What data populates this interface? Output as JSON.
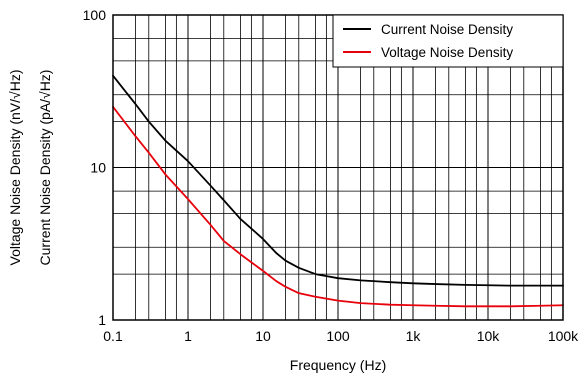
{
  "chart_data": {
    "type": "line",
    "title": "",
    "xlabel": "Frequency (Hz)",
    "ylabel_lines": [
      "Voltage Noise Density (nV/√Hz)",
      "Current Noise Density (pA/√Hz)"
    ],
    "x_scale": "log",
    "y_scale": "log",
    "xlim": [
      0.1,
      100000
    ],
    "ylim": [
      1,
      100
    ],
    "x_ticks": [
      {
        "value": 0.1,
        "label": "0.1"
      },
      {
        "value": 1,
        "label": "1"
      },
      {
        "value": 10,
        "label": "10"
      },
      {
        "value": 100,
        "label": "100"
      },
      {
        "value": 1000,
        "label": "1k"
      },
      {
        "value": 10000,
        "label": "10k"
      },
      {
        "value": 100000,
        "label": "100k"
      }
    ],
    "y_ticks": [
      {
        "value": 1,
        "label": "1"
      },
      {
        "value": 10,
        "label": "10"
      },
      {
        "value": 100,
        "label": "100"
      }
    ],
    "y_minor_gridlines": [
      2,
      3,
      5,
      7,
      20,
      30,
      50,
      70
    ],
    "x_minor_gridlines_per_decade": [
      2,
      3,
      5,
      7
    ],
    "grid": true,
    "legend_position": "top-right",
    "series": [
      {
        "name": "Current Noise Density",
        "color": "#000000",
        "x": [
          0.1,
          0.2,
          0.3,
          0.5,
          1,
          2,
          3,
          5,
          10,
          15,
          20,
          30,
          50,
          100,
          200,
          500,
          1000,
          2000,
          5000,
          10000,
          20000,
          50000,
          100000
        ],
        "y": [
          40,
          26,
          20,
          15,
          11,
          7.6,
          6.1,
          4.6,
          3.4,
          2.75,
          2.45,
          2.2,
          2.0,
          1.88,
          1.82,
          1.77,
          1.74,
          1.72,
          1.7,
          1.69,
          1.68,
          1.68,
          1.68
        ]
      },
      {
        "name": "Voltage Noise Density",
        "color": "#e8000b",
        "x": [
          0.1,
          0.2,
          0.3,
          0.5,
          1,
          2,
          3,
          5,
          10,
          15,
          20,
          30,
          50,
          100,
          200,
          500,
          1000,
          2000,
          5000,
          10000,
          20000,
          50000,
          100000
        ],
        "y": [
          25,
          16,
          12.5,
          9,
          6.2,
          4.2,
          3.3,
          2.7,
          2.1,
          1.8,
          1.65,
          1.5,
          1.42,
          1.34,
          1.29,
          1.26,
          1.25,
          1.24,
          1.23,
          1.23,
          1.23,
          1.24,
          1.25
        ]
      }
    ]
  }
}
